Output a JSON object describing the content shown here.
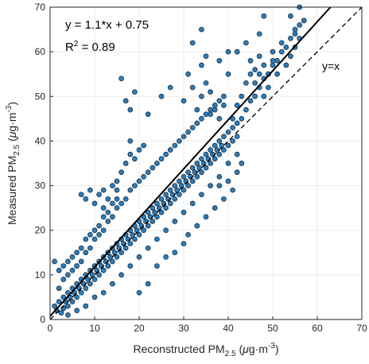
{
  "chart_data": {
    "type": "scatter",
    "xlabel": "Reconstructed PM2.5 (μg·m-3)",
    "ylabel": "Measured PM2.5 (μg·m-3)",
    "xlabel_parts": {
      "base": "Reconstructed PM",
      "sub": "2.5",
      "unit_open": " (",
      "unit_mu": "μ",
      "unit_g": "g·m",
      "unit_sup": "-3",
      "unit_close": ")"
    },
    "ylabel_parts": {
      "base": "Measured PM",
      "sub": "2.5",
      "unit_open": " (",
      "unit_mu": "μ",
      "unit_g": "g·m",
      "unit_sup": "-3",
      "unit_close": ")"
    },
    "xlim": [
      0,
      70
    ],
    "ylim": [
      0,
      70
    ],
    "xticks": [
      0,
      10,
      20,
      30,
      40,
      50,
      60,
      70
    ],
    "yticks": [
      0,
      10,
      20,
      30,
      40,
      50,
      60,
      70
    ],
    "grid": true,
    "fit": {
      "slope": 1.1,
      "intercept": 0.75,
      "label": "y = 1.1*x + 0.75",
      "r2_label_base": "R",
      "r2_label_sup": "2",
      "r2_label_rest": " = 0.89"
    },
    "identity_label": "y=x",
    "colors": {
      "marker": "#2f7bb6",
      "marker_edge": "#0d2538",
      "fit_line": "#000000",
      "identity_line": "#000000",
      "grid": "#ececec"
    },
    "points": [
      [
        1,
        3
      ],
      [
        1.5,
        2
      ],
      [
        2,
        4
      ],
      [
        2.5,
        1.5
      ],
      [
        3,
        5
      ],
      [
        3,
        2.5
      ],
      [
        3.5,
        4
      ],
      [
        4,
        6
      ],
      [
        4,
        3
      ],
      [
        4.5,
        5
      ],
      [
        5,
        7
      ],
      [
        5,
        4
      ],
      [
        5.5,
        6
      ],
      [
        6,
        8
      ],
      [
        6,
        5
      ],
      [
        6.5,
        7
      ],
      [
        7,
        9
      ],
      [
        7,
        6
      ],
      [
        7.5,
        8
      ],
      [
        8,
        10
      ],
      [
        8,
        7
      ],
      [
        8.5,
        9
      ],
      [
        9,
        11
      ],
      [
        9,
        8
      ],
      [
        9.5,
        10
      ],
      [
        10,
        12
      ],
      [
        10,
        9
      ],
      [
        10.5,
        11
      ],
      [
        11,
        13
      ],
      [
        11,
        10
      ],
      [
        11.5,
        12
      ],
      [
        12,
        14
      ],
      [
        12,
        11
      ],
      [
        12.5,
        13
      ],
      [
        13,
        15
      ],
      [
        13,
        12
      ],
      [
        13.5,
        14
      ],
      [
        14,
        16
      ],
      [
        14,
        13
      ],
      [
        14.5,
        15
      ],
      [
        15,
        17
      ],
      [
        15,
        14
      ],
      [
        15.5,
        16
      ],
      [
        16,
        18
      ],
      [
        16,
        15
      ],
      [
        16.5,
        17
      ],
      [
        17,
        19
      ],
      [
        17,
        16
      ],
      [
        17.5,
        18
      ],
      [
        18,
        20
      ],
      [
        18,
        17
      ],
      [
        18.5,
        19
      ],
      [
        19,
        21
      ],
      [
        19,
        18
      ],
      [
        19.5,
        20
      ],
      [
        20,
        22
      ],
      [
        20,
        19
      ],
      [
        20.5,
        21
      ],
      [
        21,
        23
      ],
      [
        21,
        20
      ],
      [
        21.5,
        22
      ],
      [
        22,
        24
      ],
      [
        22,
        21
      ],
      [
        22.5,
        23
      ],
      [
        23,
        25
      ],
      [
        23,
        22
      ],
      [
        23.5,
        24
      ],
      [
        24,
        26
      ],
      [
        24,
        23
      ],
      [
        24.5,
        25
      ],
      [
        25,
        27
      ],
      [
        25,
        24
      ],
      [
        25.5,
        26
      ],
      [
        26,
        28
      ],
      [
        26,
        25
      ],
      [
        26.5,
        27
      ],
      [
        27,
        29
      ],
      [
        27,
        26
      ],
      [
        27.5,
        28
      ],
      [
        28,
        30
      ],
      [
        28,
        27
      ],
      [
        28.5,
        29
      ],
      [
        29,
        31
      ],
      [
        29,
        28
      ],
      [
        29.5,
        30
      ],
      [
        30,
        32
      ],
      [
        30,
        29
      ],
      [
        30.5,
        31
      ],
      [
        31,
        33
      ],
      [
        31,
        30
      ],
      [
        31.5,
        32
      ],
      [
        32,
        34
      ],
      [
        32,
        31
      ],
      [
        32.5,
        33
      ],
      [
        33,
        35
      ],
      [
        33,
        32
      ],
      [
        33.5,
        34
      ],
      [
        34,
        36
      ],
      [
        34,
        33
      ],
      [
        34.5,
        35
      ],
      [
        35,
        37
      ],
      [
        35,
        34
      ],
      [
        35.5,
        36
      ],
      [
        36,
        38
      ],
      [
        36,
        35
      ],
      [
        36.5,
        37
      ],
      [
        37,
        39
      ],
      [
        37,
        36
      ],
      [
        37.5,
        38
      ],
      [
        38,
        40
      ],
      [
        38,
        37
      ],
      [
        38.5,
        39
      ],
      [
        39,
        41
      ],
      [
        39,
        38
      ],
      [
        40,
        42
      ],
      [
        40,
        39
      ],
      [
        41,
        43
      ],
      [
        41,
        40
      ],
      [
        42,
        44
      ],
      [
        42,
        41
      ],
      [
        43,
        45
      ],
      [
        44,
        47
      ],
      [
        45,
        49
      ],
      [
        46,
        50
      ],
      [
        47,
        52
      ],
      [
        48,
        54
      ],
      [
        49,
        55
      ],
      [
        50,
        57
      ],
      [
        51,
        58
      ],
      [
        52,
        60
      ],
      [
        53,
        61
      ],
      [
        54,
        63
      ],
      [
        55,
        64
      ],
      [
        56,
        66
      ],
      [
        57,
        67
      ],
      [
        2,
        7
      ],
      [
        3,
        9
      ],
      [
        4,
        10
      ],
      [
        5,
        11
      ],
      [
        6,
        12
      ],
      [
        7,
        13
      ],
      [
        8,
        15
      ],
      [
        9,
        16
      ],
      [
        10,
        18
      ],
      [
        11,
        19
      ],
      [
        12,
        20
      ],
      [
        13,
        22
      ],
      [
        14,
        23
      ],
      [
        15,
        25
      ],
      [
        16,
        26
      ],
      [
        17,
        27
      ],
      [
        18,
        29
      ],
      [
        19,
        30
      ],
      [
        20,
        31
      ],
      [
        21,
        32
      ],
      [
        22,
        33
      ],
      [
        23,
        34
      ],
      [
        24,
        35
      ],
      [
        25,
        36
      ],
      [
        26,
        37
      ],
      [
        27,
        38
      ],
      [
        28,
        39
      ],
      [
        29,
        40
      ],
      [
        30,
        41
      ],
      [
        31,
        42
      ],
      [
        32,
        43
      ],
      [
        33,
        44
      ],
      [
        34,
        45
      ],
      [
        35,
        46
      ],
      [
        36,
        47
      ],
      [
        37,
        48
      ],
      [
        38,
        49
      ],
      [
        39,
        50
      ],
      [
        4,
        1
      ],
      [
        6,
        2
      ],
      [
        8,
        3
      ],
      [
        10,
        5
      ],
      [
        12,
        6
      ],
      [
        14,
        8
      ],
      [
        16,
        10
      ],
      [
        18,
        12
      ],
      [
        20,
        14
      ],
      [
        22,
        16
      ],
      [
        24,
        18
      ],
      [
        26,
        20
      ],
      [
        28,
        22
      ],
      [
        30,
        24
      ],
      [
        32,
        26
      ],
      [
        34,
        28
      ],
      [
        36,
        30
      ],
      [
        38,
        32
      ],
      [
        40,
        35
      ],
      [
        42,
        37
      ],
      [
        7,
        28
      ],
      [
        8,
        27
      ],
      [
        9,
        29
      ],
      [
        10,
        26
      ],
      [
        11,
        28
      ],
      [
        12,
        25
      ],
      [
        12,
        29
      ],
      [
        13,
        27
      ],
      [
        14,
        30
      ],
      [
        15,
        31
      ],
      [
        16,
        33
      ],
      [
        17,
        35
      ],
      [
        15,
        29
      ],
      [
        18,
        37
      ],
      [
        19,
        36
      ],
      [
        20,
        38
      ],
      [
        18,
        40
      ],
      [
        21,
        39
      ],
      [
        1,
        13
      ],
      [
        2,
        11
      ],
      [
        3,
        12
      ],
      [
        4,
        13
      ],
      [
        5,
        14
      ],
      [
        6,
        15
      ],
      [
        7,
        16
      ],
      [
        8,
        18
      ],
      [
        9,
        19
      ],
      [
        10,
        20
      ],
      [
        11,
        21
      ],
      [
        12,
        23
      ],
      [
        13,
        24
      ],
      [
        14,
        26
      ],
      [
        15,
        27
      ],
      [
        16,
        54
      ],
      [
        17,
        49
      ],
      [
        18,
        47
      ],
      [
        19,
        51
      ],
      [
        22,
        46
      ],
      [
        25,
        50
      ],
      [
        27,
        52
      ],
      [
        30,
        49
      ],
      [
        31,
        55
      ],
      [
        32,
        52
      ],
      [
        33,
        47
      ],
      [
        34,
        50
      ],
      [
        35,
        53
      ],
      [
        36,
        46
      ],
      [
        38,
        58
      ],
      [
        40,
        55
      ],
      [
        42,
        60
      ],
      [
        44,
        62
      ],
      [
        45,
        58
      ],
      [
        46,
        56
      ],
      [
        47,
        59
      ],
      [
        48,
        57
      ],
      [
        49,
        52
      ],
      [
        50,
        58
      ],
      [
        52,
        62
      ],
      [
        54,
        68
      ],
      [
        55,
        65
      ],
      [
        56,
        70
      ],
      [
        57,
        67
      ],
      [
        48,
        68
      ],
      [
        34,
        65
      ],
      [
        32,
        62
      ],
      [
        50,
        60
      ],
      [
        47,
        64
      ],
      [
        51,
        55
      ],
      [
        53,
        57
      ],
      [
        54,
        59
      ],
      [
        55,
        61
      ],
      [
        56,
        63
      ],
      [
        40,
        60
      ],
      [
        35,
        59
      ],
      [
        34,
        57
      ],
      [
        36,
        51
      ],
      [
        37,
        47
      ],
      [
        38,
        45
      ],
      [
        39,
        48
      ],
      [
        41,
        45
      ],
      [
        42,
        48
      ],
      [
        43,
        50
      ],
      [
        44,
        53
      ],
      [
        45,
        55
      ],
      [
        46,
        53
      ],
      [
        47,
        55
      ],
      [
        48,
        50
      ],
      [
        49,
        55
      ],
      [
        20,
        6
      ],
      [
        22,
        8
      ],
      [
        24,
        12
      ],
      [
        26,
        14
      ],
      [
        28,
        15
      ],
      [
        30,
        17
      ],
      [
        31,
        19
      ],
      [
        33,
        21
      ],
      [
        35,
        23
      ],
      [
        37,
        25
      ],
      [
        39,
        27
      ],
      [
        41,
        29
      ],
      [
        42,
        33
      ],
      [
        43,
        35
      ],
      [
        40,
        31
      ],
      [
        38,
        30
      ]
    ]
  }
}
